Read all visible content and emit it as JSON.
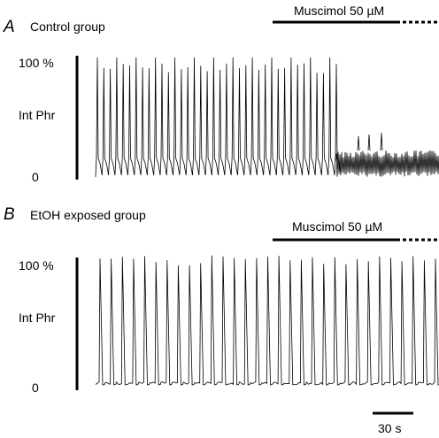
{
  "panels": [
    {
      "letter": "A",
      "title": "Control group",
      "drug_label": "Muscimol 50 µM",
      "y_top_label": "100 %",
      "y_mid_label": "Int Phr",
      "y_bottom_label": "0",
      "burst_count_before_drug": 38,
      "burst_count_after_drug": 3,
      "baseline_level_pct": 14
    },
    {
      "letter": "B",
      "title": "EtOH exposed group",
      "drug_label": "Muscimol 50 µM",
      "y_top_label": "100 %",
      "y_mid_label": "Int Phr",
      "y_bottom_label": "0",
      "burst_count": 31,
      "baseline_level_pct": 3
    }
  ],
  "scale_bar": {
    "label": "30 s"
  },
  "colors": {
    "trace": "#000000",
    "background": "#ffffff"
  }
}
